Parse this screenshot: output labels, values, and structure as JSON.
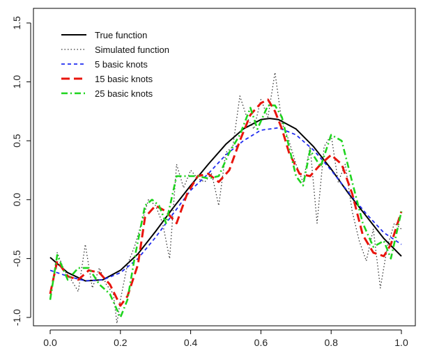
{
  "chart_data": {
    "type": "line",
    "title": "",
    "xlabel": "",
    "ylabel": "",
    "xlim": [
      0.0,
      1.0
    ],
    "ylim": [
      -1.0,
      1.5
    ],
    "xticks": [
      "0.0",
      "0.2",
      "0.4",
      "0.6",
      "0.8",
      "1.0"
    ],
    "yticks": [
      "-1.0",
      "-0.5",
      "0.0",
      "0.5",
      "1.0",
      "1.5"
    ],
    "legend_position": "top-left",
    "grid": false,
    "series": [
      {
        "name": "True function",
        "color": "#000000",
        "style": "solid",
        "x": [
          0.0,
          0.05,
          0.1,
          0.15,
          0.2,
          0.25,
          0.3,
          0.35,
          0.4,
          0.45,
          0.5,
          0.55,
          0.6,
          0.625,
          0.65,
          0.7,
          0.75,
          0.8,
          0.85,
          0.9,
          0.95,
          1.0
        ],
        "y": [
          -0.49,
          -0.62,
          -0.69,
          -0.68,
          -0.6,
          -0.46,
          -0.27,
          -0.07,
          0.12,
          0.3,
          0.47,
          0.6,
          0.68,
          0.69,
          0.68,
          0.6,
          0.45,
          0.26,
          0.05,
          -0.14,
          -0.33,
          -0.48
        ]
      },
      {
        "name": "Simulated function",
        "color": "#333333",
        "style": "dotted",
        "x": [
          0.0,
          0.02,
          0.04,
          0.06,
          0.08,
          0.1,
          0.12,
          0.14,
          0.16,
          0.18,
          0.19,
          0.2,
          0.22,
          0.24,
          0.26,
          0.28,
          0.3,
          0.32,
          0.34,
          0.36,
          0.38,
          0.4,
          0.42,
          0.44,
          0.46,
          0.48,
          0.5,
          0.52,
          0.54,
          0.56,
          0.58,
          0.6,
          0.62,
          0.64,
          0.66,
          0.68,
          0.7,
          0.72,
          0.74,
          0.76,
          0.78,
          0.8,
          0.82,
          0.84,
          0.86,
          0.88,
          0.9,
          0.92,
          0.94,
          0.96,
          0.98,
          1.0
        ],
        "y": [
          -0.85,
          -0.45,
          -0.6,
          -0.68,
          -0.78,
          -0.38,
          -0.75,
          -0.58,
          -0.72,
          -0.8,
          -1.05,
          -0.85,
          -0.55,
          -0.4,
          -0.2,
          0.0,
          -0.05,
          -0.2,
          -0.5,
          0.3,
          0.1,
          0.25,
          0.18,
          0.15,
          0.22,
          -0.05,
          0.4,
          0.45,
          0.88,
          0.7,
          0.6,
          0.85,
          0.7,
          1.08,
          0.65,
          0.5,
          0.3,
          0.15,
          0.45,
          -0.2,
          0.45,
          0.55,
          0.15,
          0.3,
          -0.1,
          -0.35,
          -0.52,
          -0.25,
          -0.75,
          -0.4,
          -0.2,
          -0.25
        ]
      },
      {
        "name": "5 basic knots",
        "color": "#1f2bf0",
        "style": "dashed",
        "x": [
          0.0,
          0.05,
          0.1,
          0.15,
          0.2,
          0.25,
          0.3,
          0.35,
          0.4,
          0.45,
          0.5,
          0.55,
          0.6,
          0.65,
          0.7,
          0.75,
          0.8,
          0.85,
          0.9,
          0.95,
          1.0
        ],
        "y": [
          -0.6,
          -0.65,
          -0.69,
          -0.68,
          -0.62,
          -0.5,
          -0.32,
          -0.12,
          0.08,
          0.22,
          0.38,
          0.5,
          0.59,
          0.61,
          0.55,
          0.42,
          0.25,
          0.06,
          -0.12,
          -0.28,
          -0.38
        ]
      },
      {
        "name": "15 basic knots",
        "color": "#e8140c",
        "style": "longdash",
        "x": [
          0.0,
          0.02,
          0.05,
          0.08,
          0.11,
          0.14,
          0.17,
          0.2,
          0.22,
          0.25,
          0.27,
          0.3,
          0.33,
          0.36,
          0.39,
          0.42,
          0.45,
          0.48,
          0.51,
          0.54,
          0.57,
          0.6,
          0.62,
          0.64,
          0.66,
          0.68,
          0.71,
          0.74,
          0.77,
          0.8,
          0.83,
          0.86,
          0.89,
          0.92,
          0.95,
          0.97,
          1.0
        ],
        "y": [
          -0.8,
          -0.52,
          -0.65,
          -0.68,
          -0.6,
          -0.62,
          -0.72,
          -0.9,
          -0.82,
          -0.55,
          -0.15,
          -0.05,
          -0.1,
          -0.2,
          0.05,
          0.2,
          0.22,
          0.15,
          0.25,
          0.5,
          0.72,
          0.82,
          0.85,
          0.75,
          0.6,
          0.4,
          0.22,
          0.2,
          0.3,
          0.38,
          0.3,
          0.05,
          -0.3,
          -0.45,
          -0.48,
          -0.38,
          -0.1
        ]
      },
      {
        "name": "25 basic knots",
        "color": "#1ed41e",
        "style": "dashdot",
        "x": [
          0.0,
          0.02,
          0.05,
          0.08,
          0.11,
          0.14,
          0.17,
          0.2,
          0.22,
          0.24,
          0.27,
          0.29,
          0.31,
          0.33,
          0.36,
          0.39,
          0.42,
          0.45,
          0.48,
          0.51,
          0.54,
          0.57,
          0.59,
          0.62,
          0.64,
          0.66,
          0.68,
          0.7,
          0.72,
          0.74,
          0.77,
          0.8,
          0.83,
          0.86,
          0.89,
          0.92,
          0.95,
          0.97,
          1.0
        ],
        "y": [
          -0.85,
          -0.47,
          -0.68,
          -0.58,
          -0.58,
          -0.72,
          -0.8,
          -1.0,
          -0.85,
          -0.5,
          -0.05,
          0.0,
          -0.05,
          -0.2,
          0.2,
          0.2,
          0.2,
          0.18,
          0.2,
          0.4,
          0.55,
          0.78,
          0.6,
          0.8,
          0.8,
          0.7,
          0.45,
          0.2,
          0.12,
          0.42,
          0.28,
          0.55,
          0.5,
          0.15,
          -0.2,
          -0.4,
          -0.35,
          -0.5,
          -0.1
        ]
      }
    ]
  }
}
